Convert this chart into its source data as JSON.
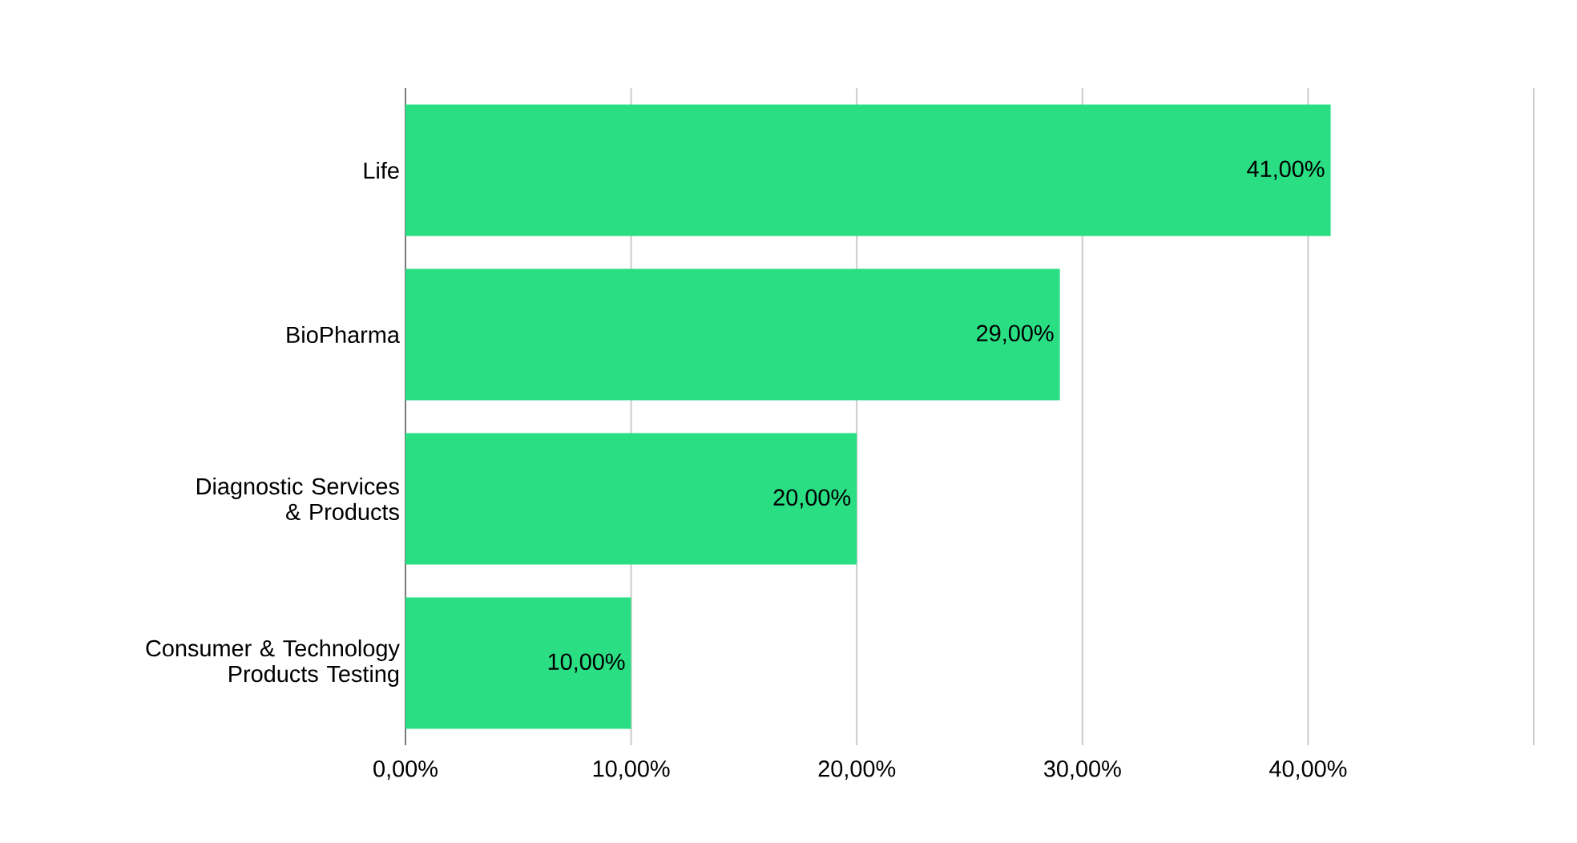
{
  "chart_data": {
    "type": "bar",
    "orientation": "horizontal",
    "categories": [
      "Life",
      "BioPharma",
      "Diagnostic Services & Products",
      "Consumer & Technology Products Testing"
    ],
    "values": [
      41,
      29,
      20,
      10
    ],
    "value_labels": [
      "41,00%",
      "29,00%",
      "20,00%",
      "10,00%"
    ],
    "color": "#2ade84",
    "xlim": [
      0,
      50
    ],
    "xticks": [
      {
        "value": 0,
        "label": "0,00%"
      },
      {
        "value": 10,
        "label": "10,00%"
      },
      {
        "value": 20,
        "label": "20,00%"
      },
      {
        "value": 30,
        "label": "30,00%"
      },
      {
        "value": 40,
        "label": "40,00%"
      },
      {
        "value": 50,
        "label": null
      }
    ],
    "grid": "x"
  }
}
